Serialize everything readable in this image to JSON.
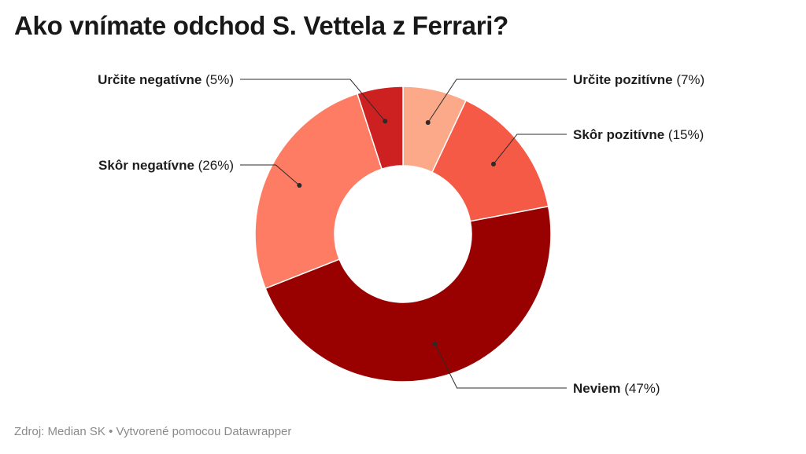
{
  "title": "Ako vnímate odchod S. Vettela z Ferrari?",
  "footer": {
    "source": "Zdroj: Median SK",
    "separator": "•",
    "credit": "Vytvorené pomocou Datawrapper"
  },
  "chart_data": {
    "type": "pie",
    "style": "donut",
    "title": "Ako vnímate odchod S. Vettela z Ferrari?",
    "unit": "%",
    "slices": [
      {
        "name": "Určite pozitívne",
        "value": 7,
        "pct_label": "(7%)",
        "color": "#fca98a"
      },
      {
        "name": "Skôr pozitívne",
        "value": 15,
        "pct_label": "(15%)",
        "color": "#f55a47"
      },
      {
        "name": "Neviem",
        "value": 47,
        "pct_label": "(47%)",
        "color": "#990000"
      },
      {
        "name": "Skôr negatívne",
        "value": 26,
        "pct_label": "(26%)",
        "color": "#fe7c64"
      },
      {
        "name": "Určite negatívne",
        "value": 5,
        "pct_label": "(5%)",
        "color": "#cd2121"
      }
    ]
  }
}
